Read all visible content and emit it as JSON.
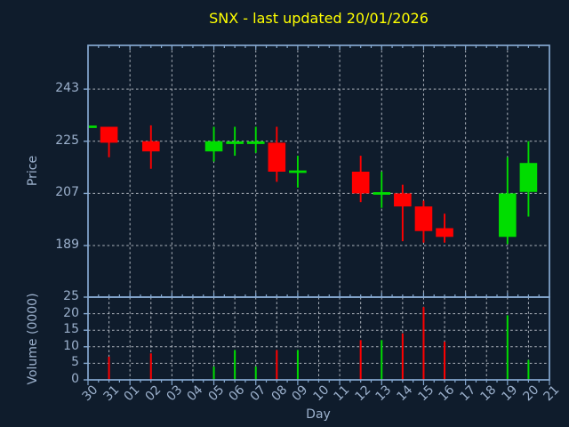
{
  "colors": {
    "background": "#0f1c2c",
    "spine": "#85a8d0",
    "grid": "#c9ced6",
    "tick_label": "#9cb1cd",
    "title": "#ffff00",
    "up": "#00dd00",
    "down": "#ff0000"
  },
  "chart_data": {
    "type": "candlestick",
    "title": "SNX - last updated 20/01/2026",
    "xlabel": "Day",
    "price_ylabel": "Price",
    "volume_ylabel": "Volume (0000)",
    "x_categories": [
      "30",
      "31",
      "01",
      "02",
      "03",
      "04",
      "05",
      "06",
      "07",
      "08",
      "09",
      "10",
      "11",
      "12",
      "13",
      "14",
      "15",
      "16",
      "17",
      "18",
      "19",
      "20",
      "21"
    ],
    "price_yticks": [
      243,
      225,
      207,
      189
    ],
    "price_ylim": [
      171.2,
      258.1
    ],
    "volume_yticks": [
      25,
      20,
      15,
      10,
      5,
      0
    ],
    "volume_ylim": [
      0,
      25
    ],
    "grid": "dashed",
    "candles": [
      {
        "day": "30",
        "open": 230,
        "high": 230,
        "low": 230,
        "close": 230,
        "volume": 0
      },
      {
        "day": "31",
        "open": 230,
        "high": 230,
        "low": 219.5,
        "close": 224.5,
        "volume": 7
      },
      {
        "day": "02",
        "open": 225,
        "high": 230.5,
        "low": 215.5,
        "close": 221.5,
        "volume": 8
      },
      {
        "day": "05",
        "open": 221.5,
        "high": 230,
        "low": 218,
        "close": 225,
        "volume": 4
      },
      {
        "day": "06",
        "open": 224.5,
        "high": 230,
        "low": 220,
        "close": 224.5,
        "volume": 9
      },
      {
        "day": "07",
        "open": 224.5,
        "high": 230,
        "low": 221,
        "close": 224.5,
        "volume": 4
      },
      {
        "day": "08",
        "open": 224.5,
        "high": 230,
        "low": 211,
        "close": 214.5,
        "volume": 9
      },
      {
        "day": "09",
        "open": 214.5,
        "high": 220,
        "low": 209,
        "close": 214.5,
        "volume": 9
      },
      {
        "day": "12",
        "open": 214.5,
        "high": 220,
        "low": 204,
        "close": 207,
        "volume": 12
      },
      {
        "day": "13",
        "open": 207,
        "high": 214.5,
        "low": 202,
        "close": 207,
        "volume": 12
      },
      {
        "day": "14",
        "open": 207,
        "high": 210,
        "low": 190.5,
        "close": 202.5,
        "volume": 14
      },
      {
        "day": "15",
        "open": 202.5,
        "high": 204.5,
        "low": 190,
        "close": 194,
        "volume": 22
      },
      {
        "day": "16",
        "open": 195,
        "high": 200,
        "low": 190,
        "close": 192,
        "volume": 11.5
      },
      {
        "day": "19",
        "open": 192,
        "high": 219.5,
        "low": 189.5,
        "close": 207,
        "volume": 19.5
      },
      {
        "day": "20",
        "open": 207.5,
        "high": 225,
        "low": 199,
        "close": 217.5,
        "volume": 6
      }
    ]
  }
}
